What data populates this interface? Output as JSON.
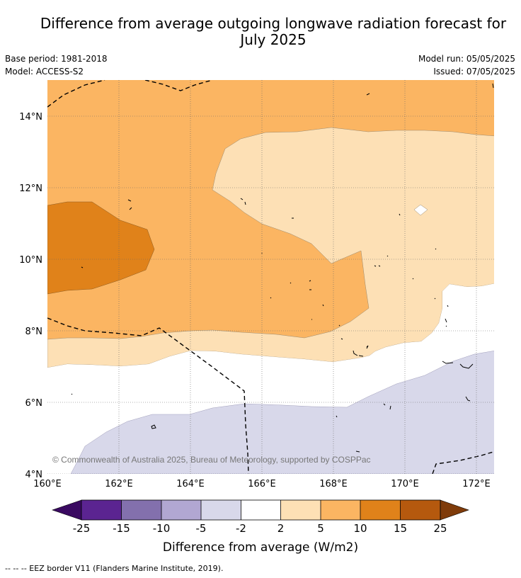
{
  "title": {
    "line1": "Difference from average outgoing longwave radiation forecast for",
    "line2": "July 2025"
  },
  "meta": {
    "base_period": "Base period: 1981-2018",
    "model": "Model: ACCESS-S2",
    "model_run": "Model run: 05/05/2025",
    "issued": "Issued: 07/05/2025"
  },
  "map": {
    "lat_labels": [
      "14°N",
      "12°N",
      "10°N",
      "8°N",
      "6°N",
      "4°N"
    ],
    "lon_labels": [
      "160°E",
      "162°E",
      "164°E",
      "166°E",
      "168°E",
      "170°E",
      "172°E"
    ],
    "copyright": "© Commonwealth of Australia 2025, Bureau of Meteorology, supported by COSPPac",
    "colors": {
      "gt_15": "#e0821a",
      "gt_5": "#fbb562",
      "gt_2": "#fde0b5",
      "neutral": "#ffffff",
      "lt_neg2": "#d8d8ea"
    }
  },
  "colorbar": {
    "ticks": [
      "-25",
      "-15",
      "-10",
      "-5",
      "-2",
      "2",
      "5",
      "10",
      "15",
      "25"
    ],
    "colors": [
      "#5b2491",
      "#8370ad",
      "#b1a7d2",
      "#d8d8ea",
      "#ffffff",
      "#fde0b5",
      "#fbb562",
      "#e0821a",
      "#b5590e"
    ],
    "under_color": "#3a0a61",
    "over_color": "#7f3b0a",
    "label": "Difference from average (W/m2)"
  },
  "footer": "--  --  -- EEZ border V11 (Flanders Marine Institute, 2019)."
}
